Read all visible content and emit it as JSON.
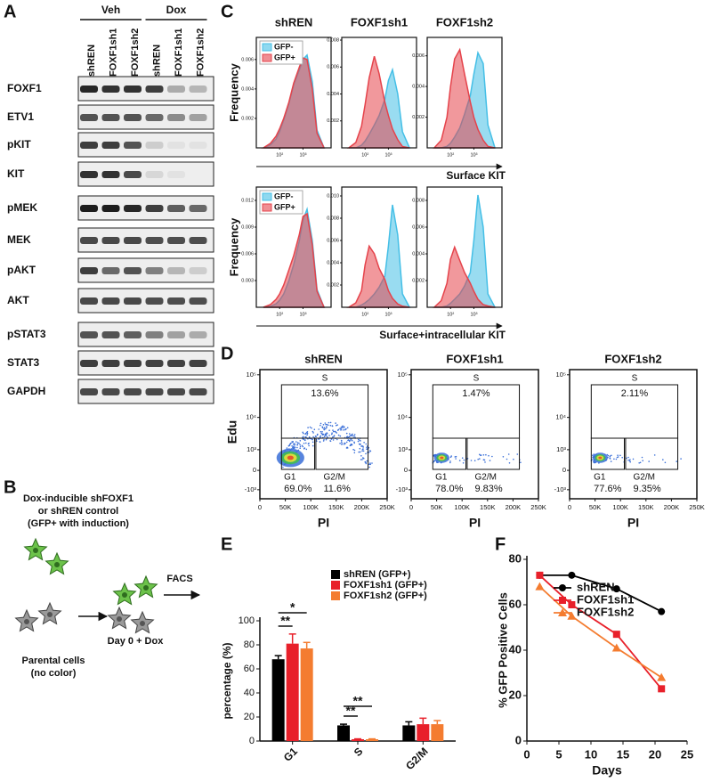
{
  "panel_labels": [
    "A",
    "B",
    "C",
    "D",
    "E",
    "F"
  ],
  "blot": {
    "groups": [
      "Veh",
      "Dox"
    ],
    "lanes": [
      "shREN",
      "FOXF1sh1",
      "FOXF1sh2",
      "shREN",
      "FOXF1sh1",
      "FOXF1sh2"
    ],
    "rows": [
      "FOXF1",
      "ETV1",
      "pKIT",
      "KIT",
      "pMEK",
      "MEK",
      "pAKT",
      "AKT",
      "pSTAT3",
      "STAT3",
      "GAPDH"
    ]
  },
  "diagram": {
    "header": [
      "Dox-inducible shFOXF1",
      "or shREN control",
      "(GFP+ with induction)"
    ],
    "step": "FACS",
    "parental": [
      "Parental cells",
      "(no color)"
    ],
    "day": "Day 0 + Dox"
  },
  "flow": {
    "xlabel": "PI",
    "ylabel": "Edu",
    "xticks": [
      "0",
      "50K",
      "100K",
      "150K",
      "200K",
      "250K"
    ],
    "yticks": [
      "10⁵",
      "10⁴",
      "10³",
      "0",
      "-10³"
    ],
    "gates": [
      "S",
      "G1",
      "G2/M"
    ],
    "plots": [
      {
        "title": "shREN",
        "percents": [
          "13.6%",
          "69.0%",
          "11.6%"
        ]
      },
      {
        "title": "FOXF1sh1",
        "percents": [
          "1.47%",
          "78.0%",
          "9.83%"
        ]
      },
      {
        "title": "FOXF1sh2",
        "percents": [
          "2.11%",
          "77.6%",
          "9.35%"
        ]
      }
    ]
  },
  "chart_data": [
    {
      "type": "area",
      "title": "shREN",
      "ylabel": "Frequency",
      "xscale": "log",
      "legend": "upper left",
      "x": [
        20,
        40,
        70,
        100,
        150,
        250,
        400,
        700,
        1000,
        1500,
        2500,
        4000,
        8000
      ],
      "xlim": [
        10,
        16000
      ],
      "xticks": [
        {
          "value": 100,
          "label": "10²"
        },
        {
          "value": 1000,
          "label": "10³"
        }
      ],
      "ylim": [
        0,
        0.0075
      ],
      "yticks": [
        0.002,
        0.004,
        0.006
      ],
      "series": [
        {
          "name": "GFP-",
          "color": "#45bfe6",
          "values": [
            0,
            0.0002,
            0.0006,
            0.0011,
            0.0019,
            0.003,
            0.0043,
            0.0053,
            0.006,
            0.0063,
            0.0045,
            0.0012,
            0
          ]
        },
        {
          "name": "GFP+",
          "color": "#e5434b",
          "values": [
            0,
            0.0003,
            0.0008,
            0.0013,
            0.002,
            0.0031,
            0.0044,
            0.0055,
            0.0061,
            0.006,
            0.004,
            0.001,
            0
          ]
        }
      ]
    },
    {
      "type": "area",
      "title": "FOXF1sh1",
      "xscale": "log",
      "x": [
        20,
        40,
        70,
        100,
        150,
        250,
        400,
        700,
        1000,
        1500,
        2500,
        4000,
        8000
      ],
      "xlim": [
        10,
        16000
      ],
      "xticks": [
        {
          "value": 100,
          "label": "10²"
        },
        {
          "value": 1000,
          "label": "10³"
        }
      ],
      "ylim": [
        0,
        0.0082
      ],
      "yticks": [
        0.002,
        0.004,
        0.006,
        0.008
      ],
      "series": [
        {
          "color": "#45bfe6",
          "values": [
            0,
            0,
            0.0002,
            0.0005,
            0.001,
            0.0017,
            0.0024,
            0.0036,
            0.005,
            0.0058,
            0.004,
            0.0012,
            0
          ]
        },
        {
          "color": "#e5434b",
          "values": [
            0,
            0.0004,
            0.0016,
            0.0032,
            0.0052,
            0.0068,
            0.0055,
            0.0034,
            0.0024,
            0.0014,
            0.0006,
            0.0001,
            0
          ]
        }
      ]
    },
    {
      "type": "area",
      "title": "FOXF1sh2",
      "xlabel": "Surface KIT",
      "xscale": "log",
      "x": [
        20,
        40,
        70,
        100,
        150,
        250,
        400,
        700,
        1000,
        1500,
        2500,
        4000,
        8000
      ],
      "xlim": [
        10,
        16000
      ],
      "xticks": [
        {
          "value": 100,
          "label": "10²"
        },
        {
          "value": 1000,
          "label": "10³"
        }
      ],
      "ylim": [
        0,
        0.0072
      ],
      "yticks": [
        0.002,
        0.004,
        0.006
      ],
      "series": [
        {
          "color": "#45bfe6",
          "values": [
            0,
            0,
            0.0001,
            0.0003,
            0.0007,
            0.0013,
            0.0022,
            0.0034,
            0.0048,
            0.0062,
            0.0055,
            0.0015,
            0
          ]
        },
        {
          "color": "#e5434b",
          "values": [
            0,
            0.0005,
            0.002,
            0.004,
            0.0058,
            0.0064,
            0.0048,
            0.003,
            0.002,
            0.0012,
            0.0005,
            0.0001,
            0
          ]
        }
      ]
    },
    {
      "type": "area",
      "ylabel": "Frequency",
      "xscale": "log",
      "legend": "upper left",
      "x": [
        20,
        40,
        70,
        100,
        150,
        250,
        400,
        700,
        1000,
        1500,
        2500,
        4000,
        8000
      ],
      "xlim": [
        10,
        16000
      ],
      "xticks": [
        {
          "value": 100,
          "label": "10²"
        },
        {
          "value": 1000,
          "label": "10³"
        }
      ],
      "ylim": [
        0,
        0.0135
      ],
      "yticks": [
        0.003,
        0.006,
        0.009,
        0.012
      ],
      "series": [
        {
          "name": "GFP-",
          "color": "#45bfe6",
          "values": [
            0,
            0.0001,
            0.0004,
            0.0008,
            0.0015,
            0.003,
            0.0048,
            0.0075,
            0.0098,
            0.011,
            0.0075,
            0.002,
            0
          ]
        },
        {
          "name": "GFP+",
          "color": "#e5434b",
          "values": [
            0,
            0.0003,
            0.0009,
            0.0015,
            0.0025,
            0.0042,
            0.0058,
            0.0082,
            0.0102,
            0.0105,
            0.007,
            0.0018,
            0
          ]
        }
      ]
    },
    {
      "type": "area",
      "xscale": "log",
      "x": [
        20,
        40,
        70,
        100,
        150,
        250,
        400,
        700,
        1000,
        1500,
        2500,
        4000,
        8000
      ],
      "xlim": [
        10,
        16000
      ],
      "xticks": [
        {
          "value": 100,
          "label": "10²"
        },
        {
          "value": 1000,
          "label": "10³"
        }
      ],
      "ylim": [
        0,
        0.0108
      ],
      "yticks": [
        0.002,
        0.004,
        0.006,
        0.008,
        {
          "value": 0.01,
          "label": "0.010"
        }
      ],
      "series": [
        {
          "color": "#45bfe6",
          "values": [
            0,
            0,
            0.0002,
            0.0004,
            0.0007,
            0.0012,
            0.0018,
            0.0028,
            0.0055,
            0.0092,
            0.0065,
            0.0012,
            0
          ]
        },
        {
          "color": "#e5434b",
          "values": [
            0,
            0.0004,
            0.0015,
            0.0038,
            0.0055,
            0.0048,
            0.0035,
            0.0025,
            0.0015,
            0.0008,
            0.0003,
            0.0001,
            0
          ]
        }
      ]
    },
    {
      "type": "area",
      "xlabel": "Surface+intracellular KIT",
      "xscale": "log",
      "x": [
        20,
        40,
        70,
        100,
        150,
        250,
        400,
        700,
        1000,
        1500,
        2500,
        4000,
        8000
      ],
      "xlim": [
        10,
        16000
      ],
      "xticks": [
        {
          "value": 100,
          "label": "10²"
        },
        {
          "value": 1000,
          "label": "10³"
        }
      ],
      "ylim": [
        0,
        0.009
      ],
      "yticks": [
        0.002,
        0.004,
        0.006,
        0.008
      ],
      "series": [
        {
          "color": "#45bfe6",
          "values": [
            0,
            0,
            0.0001,
            0.0003,
            0.0006,
            0.001,
            0.0016,
            0.0026,
            0.005,
            0.0084,
            0.006,
            0.001,
            0
          ]
        },
        {
          "color": "#e5434b",
          "values": [
            0,
            0.0005,
            0.0018,
            0.0036,
            0.0045,
            0.0035,
            0.0026,
            0.0018,
            0.0012,
            0.0006,
            0.0002,
            0.0001,
            0
          ]
        }
      ]
    },
    {
      "type": "bar",
      "ylabel": "percentage (%)",
      "categories": [
        "G1",
        "S",
        "G2/M"
      ],
      "series": [
        {
          "name": "shREN (GFP+)",
          "color": "#000000",
          "values": [
            68,
            13,
            13
          ],
          "errors": [
            3,
            1,
            3
          ]
        },
        {
          "name": "FOXF1sh1 (GFP+)",
          "color": "#e8202a",
          "values": [
            81,
            1.5,
            14
          ],
          "errors": [
            8,
            0.3,
            5
          ]
        },
        {
          "name": "FOXF1sh2 (GFP+)",
          "color": "#f47c30",
          "values": [
            77,
            1.5,
            14
          ],
          "errors": [
            5,
            0.3,
            3
          ]
        }
      ],
      "ylim": [
        0,
        100
      ],
      "yticks": [
        0,
        20,
        40,
        60,
        80,
        100
      ],
      "legend": "upper right",
      "annotations": [
        "*",
        "**",
        "**",
        "**"
      ]
    },
    {
      "type": "line",
      "xlabel": "Days",
      "ylabel": "% GFP Positive Cells",
      "x": [
        2,
        7,
        14,
        21
      ],
      "series": [
        {
          "name": "shREN",
          "color": "#000000",
          "marker": "circle",
          "values": [
            73,
            73,
            67,
            57
          ]
        },
        {
          "name": "FOXF1sh1",
          "color": "#e8202a",
          "marker": "square",
          "values": [
            73,
            60,
            47,
            23
          ]
        },
        {
          "name": "FOXF1sh2",
          "color": "#f47c30",
          "marker": "triangle",
          "values": [
            68,
            55,
            41,
            28
          ]
        }
      ],
      "xlim": [
        0,
        25
      ],
      "xticks": [
        0,
        5,
        10,
        15,
        20,
        25
      ],
      "ylim": [
        0,
        80
      ],
      "yticks": [
        0,
        20,
        40,
        60,
        80
      ],
      "legend": "upper right"
    }
  ]
}
